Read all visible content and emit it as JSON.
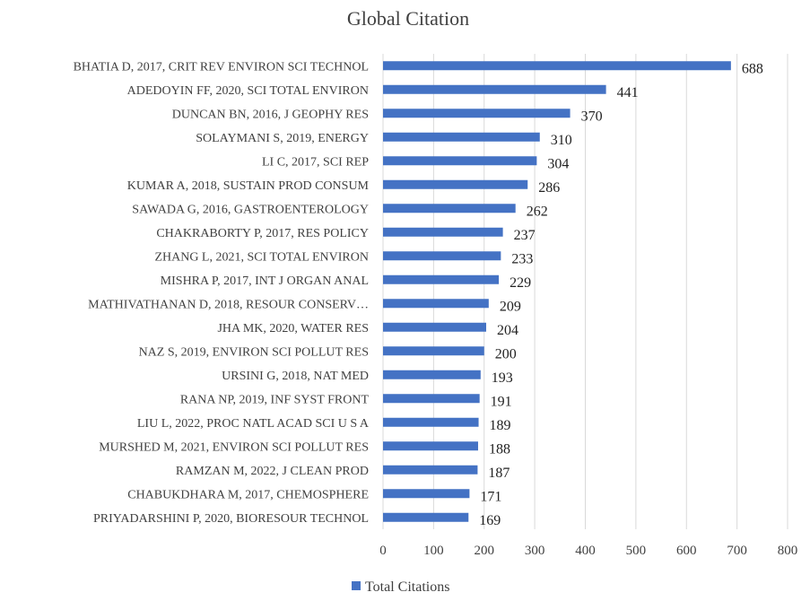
{
  "chart_data": {
    "type": "bar",
    "orientation": "horizontal",
    "title": "Global Citation",
    "categories": [
      "BHATIA D, 2017, CRIT REV ENVIRON SCI TECHNOL",
      "ADEDOYIN FF, 2020, SCI TOTAL ENVIRON",
      "DUNCAN BN, 2016, J GEOPHY RES",
      "SOLAYMANI S, 2019, ENERGY",
      "LI C, 2017, SCI REP",
      "KUMAR A, 2018, SUSTAIN PROD CONSUM",
      "SAWADA G, 2016, GASTROENTEROLOGY",
      "CHAKRABORTY P, 2017, RES POLICY",
      "ZHANG L, 2021, SCI TOTAL ENVIRON",
      "MISHRA P, 2017, INT J ORGAN ANAL",
      "MATHIVATHANAN D, 2018, RESOUR CONSERV…",
      "JHA MK, 2020, WATER RES",
      "NAZ S, 2019, ENVIRON SCI POLLUT RES",
      "URSINI G, 2018, NAT MED",
      "RANA NP, 2019, INF SYST FRONT",
      "LIU L, 2022, PROC NATL ACAD SCI U S A",
      "MURSHED M, 2021, ENVIRON SCI POLLUT RES",
      "RAMZAN M, 2022, J CLEAN PROD",
      "CHABUKDHARA M, 2017, CHEMOSPHERE",
      "PRIYADARSHINI P, 2020, BIORESOUR TECHNOL"
    ],
    "series": [
      {
        "name": "Total Citations",
        "values": [
          688,
          441,
          370,
          310,
          304,
          286,
          262,
          237,
          233,
          229,
          209,
          204,
          200,
          193,
          191,
          189,
          188,
          187,
          171,
          169
        ]
      }
    ],
    "xlim": [
      0,
      800
    ],
    "xticks": [
      "0",
      "100",
      "200",
      "300",
      "400",
      "500",
      "600",
      "700",
      "800"
    ],
    "grid": "vertical",
    "legend_position": "bottom",
    "data_labels": true,
    "colors": {
      "bar": "#4472C4",
      "grid": "#D9D9D9",
      "text": "#404040"
    }
  }
}
